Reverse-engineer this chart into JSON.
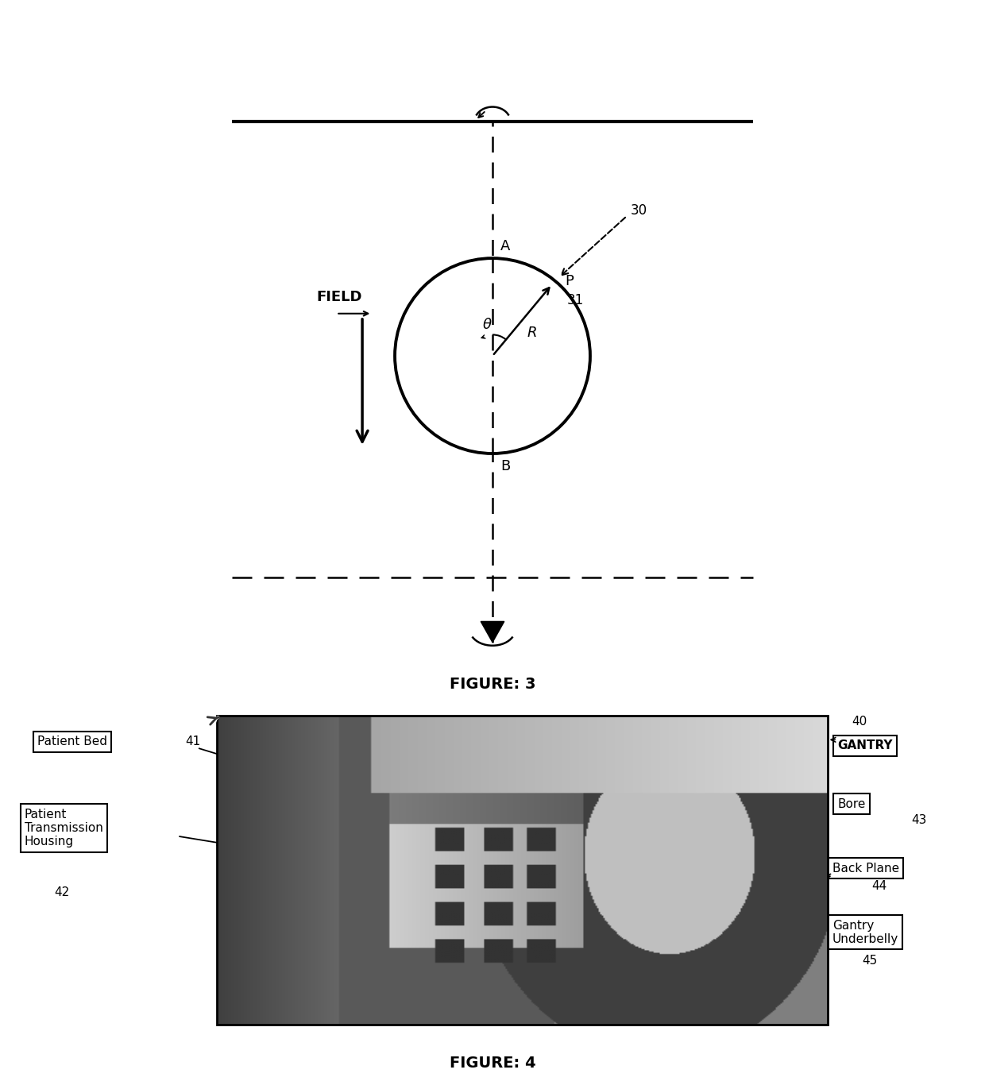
{
  "fig_width": 12.4,
  "fig_height": 13.66,
  "bg_color": "#ffffff",
  "fig3_title": "FIGURE: 3",
  "fig4_title": "FIGURE: 4",
  "label_A": "A",
  "label_B": "B",
  "label_P": "P",
  "label_R": "R",
  "label_theta": "θ",
  "label_30": "30",
  "label_31": "31",
  "label_FIELD": "FIELD",
  "label_40": "40",
  "label_41": "41",
  "label_42": "42",
  "label_43": "43",
  "label_44": "44",
  "label_45": "45",
  "label_PatientBed": "Patient Bed",
  "label_PatientTransmission": "Patient\nTransmission\nHousing",
  "label_GANTRY": "GANTRY",
  "label_Bore": "Bore",
  "label_BackPlane": "Back Plane",
  "label_GantryUnderbelly": "Gantry\nUnderbelly"
}
